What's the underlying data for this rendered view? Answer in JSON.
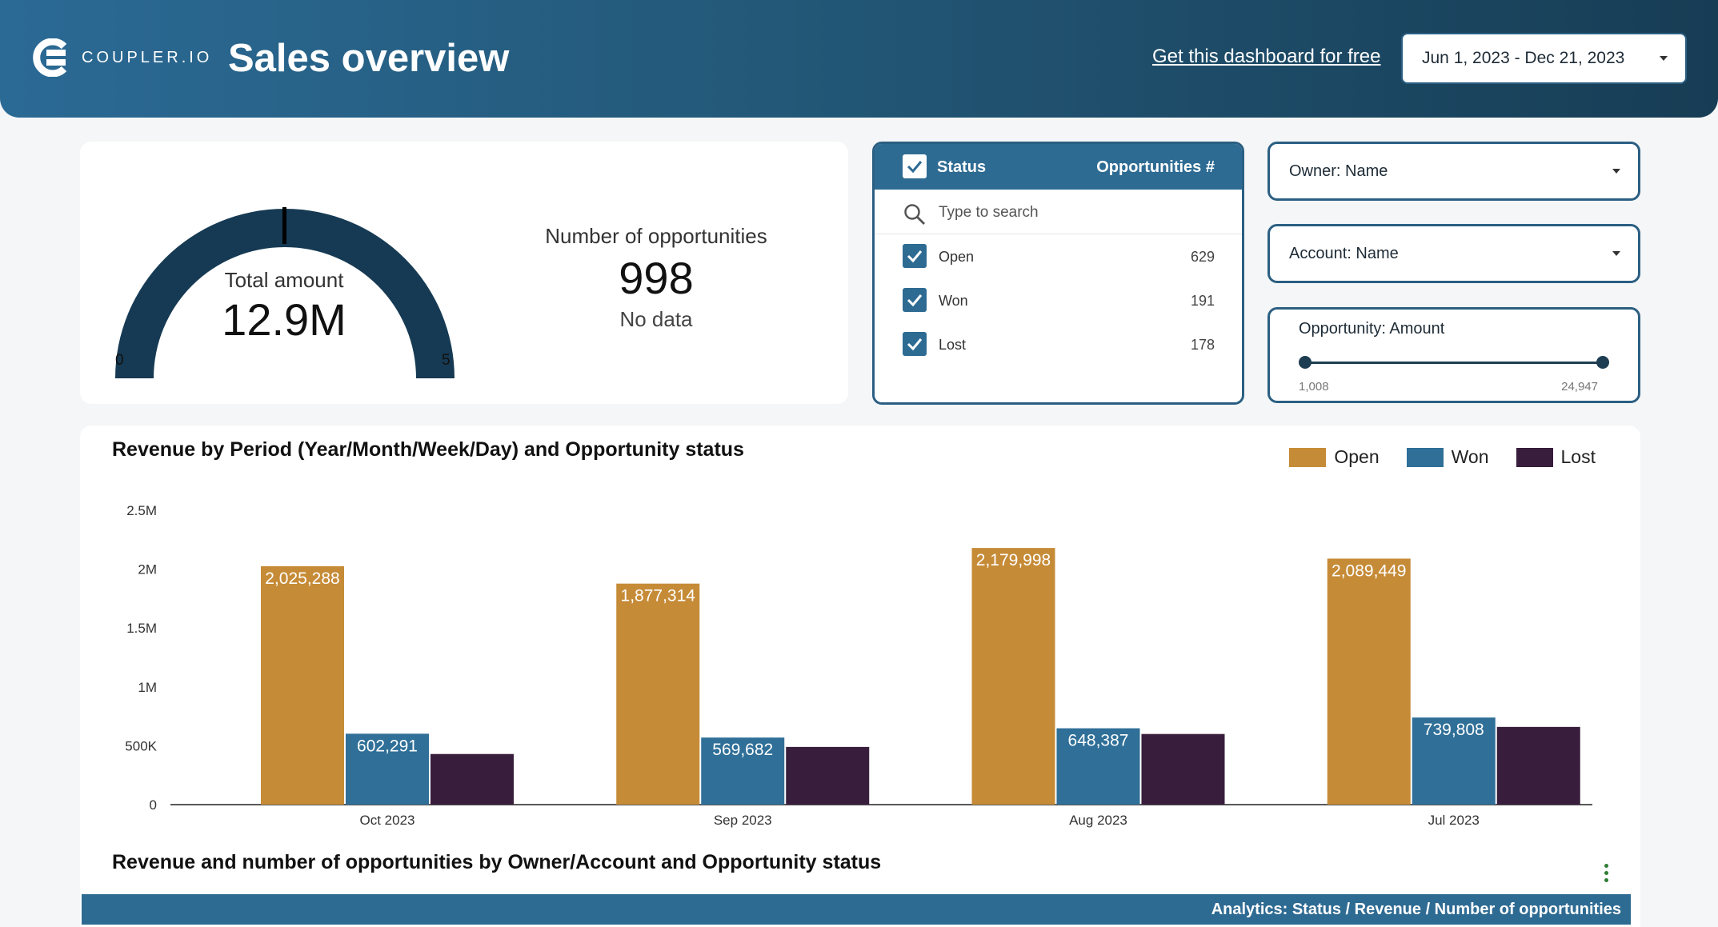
{
  "header": {
    "logo_text": "COUPLER.IO",
    "title": "Sales overview",
    "free_link": "Get this dashboard for free",
    "date_range": "Jun 1, 2023 - Dec 21, 2023"
  },
  "kpi": {
    "gauge_label": "Total amount",
    "gauge_value": "12.9M",
    "gauge_min": "0",
    "gauge_max": "5",
    "opportunities_label": "Number of opportunities",
    "opportunities_value": "998",
    "opportunities_sub": "No data"
  },
  "status_filter": {
    "header_label": "Status",
    "header_count_label": "Opportunities #",
    "search_placeholder": "Type to search",
    "items": [
      {
        "label": "Open",
        "count": "629"
      },
      {
        "label": "Won",
        "count": "191"
      },
      {
        "label": "Lost",
        "count": "178"
      }
    ]
  },
  "filters": {
    "owner": "Owner: Name",
    "account": "Account: Name",
    "amount_label": "Opportunity: Amount",
    "amount_min": "1,008",
    "amount_max": "24,947"
  },
  "colors": {
    "open": "#c68b37",
    "won": "#2f6f98",
    "lost": "#381d3c"
  },
  "chart_data": {
    "type": "bar",
    "title": "Revenue by Period (Year/Month/Week/Day) and Opportunity status",
    "categories": [
      "Oct 2023",
      "Sep 2023",
      "Aug 2023",
      "Jul 2023"
    ],
    "series": [
      {
        "name": "Open",
        "values": [
          2025288,
          1877314,
          2179998,
          2089449
        ],
        "labels": [
          "2,025,288",
          "1,877,314",
          "2,179,998",
          "2,089,449"
        ]
      },
      {
        "name": "Won",
        "values": [
          602291,
          569682,
          648387,
          739808
        ],
        "labels": [
          "602,291",
          "569,682",
          "648,387",
          "739,808"
        ]
      },
      {
        "name": "Lost",
        "values": [
          430000,
          490000,
          600000,
          660000
        ],
        "labels": [
          "",
          "",
          "",
          ""
        ]
      }
    ],
    "yticks": [
      "0",
      "500K",
      "1M",
      "1.5M",
      "2M",
      "2.5M"
    ],
    "ylim": [
      0,
      2500000
    ],
    "legend_position": "top-right"
  },
  "table": {
    "title": "Revenue and number of opportunities by Owner/Account and Opportunity status",
    "header": "Analytics: Status / Revenue / Number of opportunities"
  }
}
